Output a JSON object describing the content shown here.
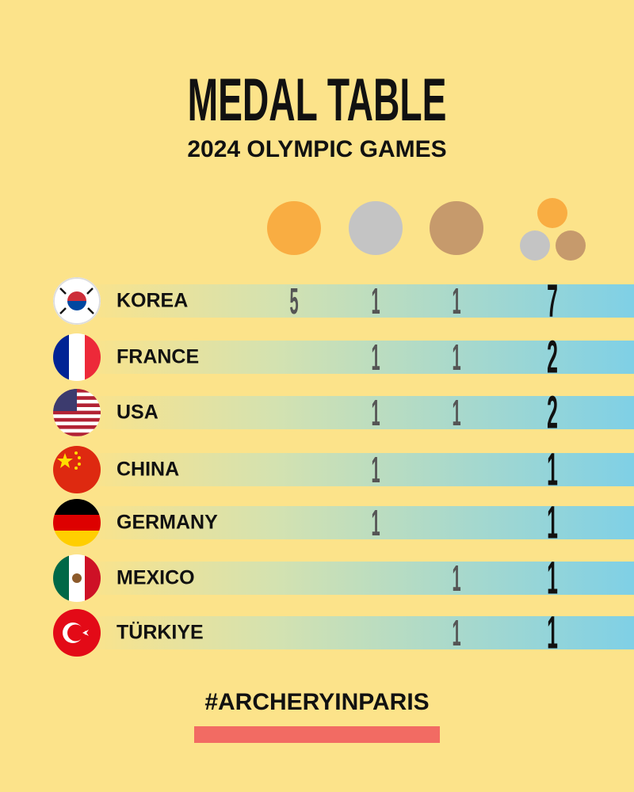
{
  "header": {
    "title": "MEDAL TABLE",
    "subtitle": "2024 OLYMPIC GAMES"
  },
  "table": {
    "rows": [
      [
        "KOREA",
        5,
        1,
        1,
        7
      ],
      [
        "FRANCE",
        null,
        1,
        1,
        2
      ],
      [
        "USA",
        null,
        1,
        1,
        2
      ],
      [
        "CHINA",
        null,
        1,
        null,
        1
      ],
      [
        "GERMANY",
        null,
        1,
        null,
        1
      ],
      [
        "MEXICO",
        null,
        null,
        1,
        1
      ],
      [
        "TÜRKIYE",
        null,
        null,
        1,
        1
      ]
    ]
  },
  "footer": {
    "hashtag": "#ARCHERYINPARIS"
  }
}
